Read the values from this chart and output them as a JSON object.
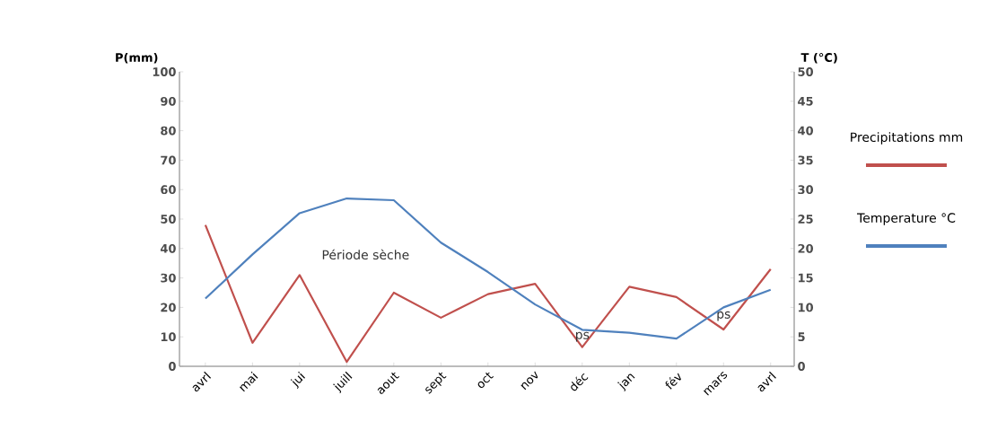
{
  "chart_data": {
    "type": "line",
    "ylabel": "P(mm)",
    "y2label": "T (°C)",
    "categories": [
      "avrl",
      "mai",
      "jui",
      "juill",
      "aout",
      "sept",
      "oct",
      "nov",
      "déc",
      "jan",
      "fév",
      "mars",
      "avrl"
    ],
    "series": [
      {
        "name": "Precipitations mm",
        "color": "#c0504d",
        "values": [
          48,
          8,
          31,
          1.5,
          25,
          16.5,
          24.5,
          28,
          6.5,
          27,
          23.5,
          12.5,
          33
        ]
      },
      {
        "name": "Temperature °C",
        "color": "#4f81bd",
        "axis": "y2",
        "values": [
          11.5,
          19,
          26,
          28.5,
          28.2,
          21,
          16,
          10.5,
          6.2,
          5.7,
          4.7,
          10,
          13
        ]
      }
    ],
    "ylim": [
      0,
      100
    ],
    "yticks": [
      0,
      10,
      20,
      30,
      40,
      50,
      60,
      70,
      80,
      90,
      100
    ],
    "y2lim": [
      0,
      50
    ],
    "y2ticks": [
      0,
      5,
      10,
      15,
      20,
      25,
      30,
      35,
      40,
      45,
      50
    ],
    "annotations": [
      "Période sèche",
      "ps",
      "ps"
    ],
    "grid": false,
    "legend": "right",
    "marker": "none",
    "line_style": "solid"
  }
}
